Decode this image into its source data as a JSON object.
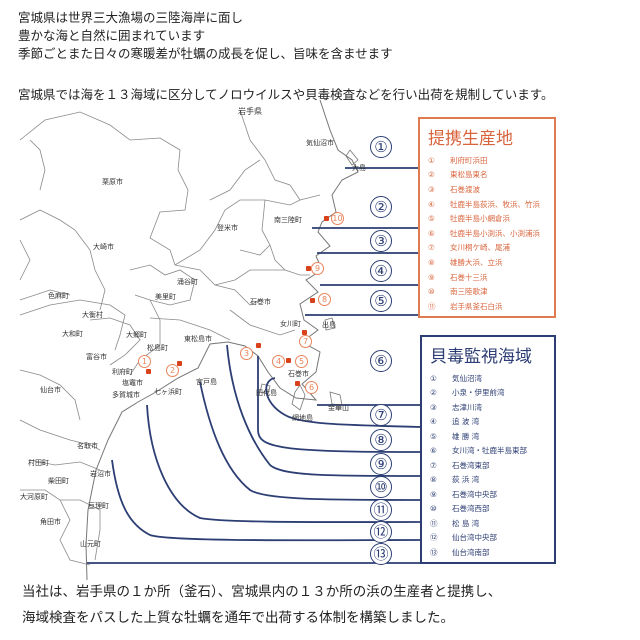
{
  "intro": {
    "lines": [
      "宮城県は世界三大漁場の三陸海岸に面し",
      "豊かな海と自然に囲まれています",
      "季節ごとまた日々の寒暖差が牡蠣の成長を促し、旨味を含ませます"
    ],
    "regulation": "宮城県では海を１３海域に区分してノロウイルスや貝毒検査などを行い出荷を規制しています。"
  },
  "map": {
    "place_labels": [
      "岩手県",
      "気仙沼市",
      "大島",
      "栗原市",
      "登米市",
      "南三陸町",
      "大崎市",
      "涌谷町",
      "美里町",
      "色麻町",
      "石巻市",
      "大衡村",
      "大和町",
      "大郷町",
      "富谷市",
      "松島町",
      "東松島市",
      "利府町",
      "塩竈市",
      "多賀城市",
      "七ヶ浜町",
      "宮戸島",
      "仙台市",
      "女川町",
      "出島",
      "石巻市",
      "田代島",
      "網地島",
      "金華山",
      "名取市",
      "村田町",
      "岩沼市",
      "柴田町",
      "大河原町",
      "亘理町",
      "角田市",
      "山元町"
    ],
    "region_numbers": [
      "①",
      "②",
      "③",
      "④",
      "⑤",
      "⑥",
      "⑦",
      "⑧",
      "⑨",
      "⑩",
      "⑪",
      "⑫",
      "⑬"
    ],
    "site_markers": [
      "1",
      "2",
      "3",
      "4",
      "5",
      "6",
      "7",
      "8",
      "9",
      "10"
    ]
  },
  "partners": {
    "title": "提携生産地",
    "items": [
      {
        "n": "①",
        "name": "利府町浜田"
      },
      {
        "n": "②",
        "name": "東松島東名"
      },
      {
        "n": "③",
        "name": "石巻渡波"
      },
      {
        "n": "④",
        "name": "牡鹿半島荻浜、牧浜、竹浜"
      },
      {
        "n": "⑤",
        "name": "牡鹿半島小網倉浜"
      },
      {
        "n": "⑥",
        "name": "牡鹿半島小渕浜、小渕浦浜"
      },
      {
        "n": "⑦",
        "name": "女川桐ケ崎、尾浦"
      },
      {
        "n": "⑧",
        "name": "雄勝大浜、立浜"
      },
      {
        "n": "⑨",
        "name": "石巻十三浜"
      },
      {
        "n": "⑩",
        "name": "南三陸歌津"
      },
      {
        "n": "⑪",
        "name": "岩手県釜石白浜"
      }
    ]
  },
  "monitoring": {
    "title": "貝毒監視海域",
    "items": [
      {
        "n": "①",
        "name": "気仙沼湾"
      },
      {
        "n": "②",
        "name": "小泉・伊里前湾"
      },
      {
        "n": "③",
        "name": "志津川湾"
      },
      {
        "n": "④",
        "name": "追 波 湾"
      },
      {
        "n": "⑤",
        "name": "雄 勝 湾"
      },
      {
        "n": "⑥",
        "name": "女川湾・牡鹿半島東部"
      },
      {
        "n": "⑦",
        "name": "石巻湾東部"
      },
      {
        "n": "⑧",
        "name": "荻 浜 湾"
      },
      {
        "n": "⑨",
        "name": "石巻湾中央部"
      },
      {
        "n": "⑩",
        "name": "石巻湾西部"
      },
      {
        "n": "⑪",
        "name": "松 島 湾"
      },
      {
        "n": "⑫",
        "name": "仙台湾中央部"
      },
      {
        "n": "⑬",
        "name": "仙台湾南部"
      }
    ]
  },
  "outro": {
    "lines": [
      "当社は、岩手県の１か所（釜石）、宮城県内の１３か所の浜の生産者と提携し、",
      "海域検査をパスした上質な牡蠣を通年で出荷する体制を構築しました。"
    ]
  },
  "colors": {
    "partner_accent": "#e07a4f",
    "monitor_accent": "#2c3e73",
    "marker": "#d9411b"
  }
}
